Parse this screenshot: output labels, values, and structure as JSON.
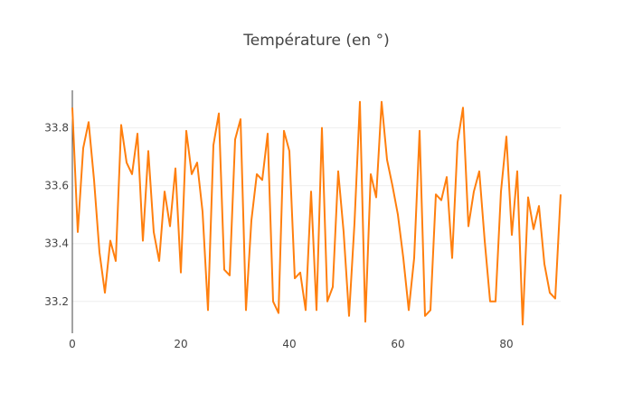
{
  "chart_data": {
    "type": "line",
    "title": "Température (en °)",
    "xlabel": "",
    "ylabel": "",
    "xlim": [
      0,
      90
    ],
    "ylim": [
      33.09,
      33.93
    ],
    "x_ticks": [
      0,
      20,
      40,
      60,
      80
    ],
    "y_ticks": [
      33.2,
      33.4,
      33.6,
      33.8
    ],
    "y_tick_labels": [
      "33.2",
      "33.4",
      "33.6",
      "33.8"
    ],
    "x_tick_labels": [
      "0",
      "20",
      "40",
      "60",
      "80"
    ],
    "grid": "horizontal",
    "line_color": "#ff7f0e",
    "series": [
      {
        "x": [
          0,
          1,
          2,
          3,
          4,
          5,
          6,
          7,
          8,
          9,
          10,
          11,
          12,
          13,
          14,
          15,
          16,
          17,
          18,
          19,
          20,
          21,
          22,
          23,
          24,
          25,
          26,
          27,
          28,
          29,
          30,
          31,
          32,
          33,
          34,
          35,
          36,
          37,
          38,
          39,
          40,
          41,
          42,
          43,
          44,
          45,
          46,
          47,
          48,
          49,
          50,
          51,
          52,
          53,
          54,
          55,
          56,
          57,
          58,
          59,
          60,
          61,
          62,
          63,
          64,
          65,
          66,
          67,
          68,
          69,
          70,
          71,
          72,
          73,
          74,
          75,
          76,
          77,
          78,
          79,
          80,
          81,
          82,
          83,
          84,
          85,
          86,
          87,
          88,
          89,
          90
        ],
        "y": [
          33.87,
          33.44,
          33.73,
          33.82,
          33.62,
          33.37,
          33.23,
          33.41,
          33.34,
          33.81,
          33.68,
          33.64,
          33.78,
          33.41,
          33.72,
          33.44,
          33.34,
          33.58,
          33.46,
          33.66,
          33.3,
          33.79,
          33.64,
          33.68,
          33.51,
          33.17,
          33.74,
          33.85,
          33.31,
          33.29,
          33.76,
          33.83,
          33.17,
          33.48,
          33.64,
          33.62,
          33.78,
          33.2,
          33.16,
          33.79,
          33.72,
          33.28,
          33.3,
          33.17,
          33.58,
          33.17,
          33.8,
          33.2,
          33.25,
          33.65,
          33.44,
          33.15,
          33.47,
          33.89,
          33.13,
          33.64,
          33.56,
          33.89,
          33.69,
          33.6,
          33.5,
          33.35,
          33.17,
          33.35,
          33.79,
          33.15,
          33.17,
          33.57,
          33.55,
          33.63,
          33.35,
          33.75,
          33.87,
          33.46,
          33.58,
          33.65,
          33.41,
          33.2,
          33.2,
          33.58,
          33.77,
          33.43,
          33.65,
          33.12,
          33.56,
          33.45,
          33.53,
          33.33,
          33.23,
          33.21,
          33.57
        ]
      }
    ]
  }
}
